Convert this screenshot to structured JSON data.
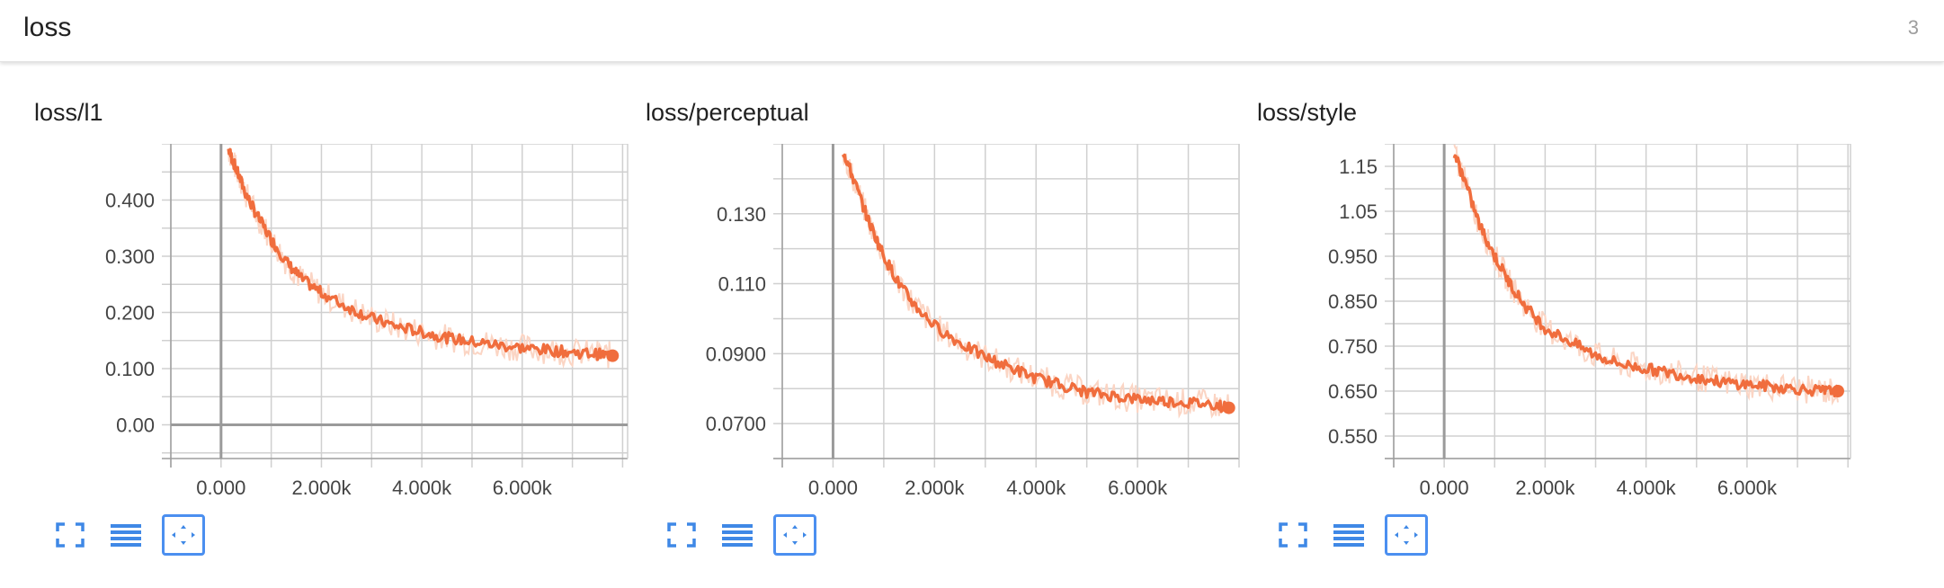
{
  "header": {
    "title": "loss",
    "count": "3"
  },
  "colors": {
    "line": "#f06d3d",
    "raw": "#fbd5c4",
    "grid": "#d0d0d0",
    "axis": "#9e9e9e",
    "icon": "#3f88e6"
  },
  "toolbar_icons": [
    "fullscreen-icon",
    "data-table-icon",
    "fit-domain-icon"
  ],
  "chart_data": [
    {
      "type": "line",
      "title": "loss/l1",
      "x_tick_labels": [
        "0.000",
        "2.000k",
        "4.000k",
        "6.000k"
      ],
      "x_ticks": [
        0,
        2000,
        4000,
        6000
      ],
      "y_tick_labels": [
        "0.00",
        "0.100",
        "0.200",
        "0.300",
        "0.400"
      ],
      "y_ticks": [
        0,
        0.1,
        0.2,
        0.3,
        0.4
      ],
      "xlim": [
        -1000,
        8100
      ],
      "ylim": [
        -0.06,
        0.5
      ],
      "x_zero_axis": true,
      "y_zero_axis": true,
      "series": [
        {
          "x": [
            150,
            300,
            500,
            700,
            1000,
            1300,
            1600,
            2000,
            2500,
            3000,
            3500,
            4000,
            4500,
            5000,
            5500,
            6000,
            6500,
            7000,
            7500,
            7800
          ],
          "y": [
            0.49,
            0.455,
            0.41,
            0.375,
            0.33,
            0.29,
            0.26,
            0.235,
            0.21,
            0.19,
            0.175,
            0.165,
            0.155,
            0.148,
            0.142,
            0.137,
            0.133,
            0.129,
            0.126,
            0.123
          ]
        }
      ]
    },
    {
      "type": "line",
      "title": "loss/perceptual",
      "x_tick_labels": [
        "0.000",
        "2.000k",
        "4.000k",
        "6.000k"
      ],
      "x_ticks": [
        0,
        2000,
        4000,
        6000
      ],
      "y_tick_labels": [
        "0.0700",
        "0.0900",
        "0.110",
        "0.130"
      ],
      "y_ticks": [
        0.07,
        0.09,
        0.11,
        0.13
      ],
      "xlim": [
        -1000,
        8000
      ],
      "ylim": [
        0.06,
        0.15
      ],
      "x_zero_axis": true,
      "y_zero_axis": false,
      "series": [
        {
          "x": [
            200,
            400,
            700,
            1000,
            1300,
            1600,
            2000,
            2500,
            3000,
            3500,
            4000,
            4500,
            5000,
            5500,
            6000,
            6500,
            7000,
            7500,
            7800
          ],
          "y": [
            0.148,
            0.14,
            0.128,
            0.118,
            0.11,
            0.104,
            0.098,
            0.093,
            0.089,
            0.086,
            0.083,
            0.081,
            0.079,
            0.078,
            0.077,
            0.0765,
            0.076,
            0.0755,
            0.0745
          ]
        }
      ]
    },
    {
      "type": "line",
      "title": "loss/style",
      "x_tick_labels": [
        "0.000",
        "2.000k",
        "4.000k",
        "6.000k"
      ],
      "x_ticks": [
        0,
        2000,
        4000,
        6000
      ],
      "y_tick_labels": [
        "0.550",
        "0.650",
        "0.750",
        "0.850",
        "0.950",
        "1.05",
        "1.15"
      ],
      "y_ticks": [
        0.55,
        0.65,
        0.75,
        0.85,
        0.95,
        1.05,
        1.15
      ],
      "xlim": [
        -1000,
        8050
      ],
      "ylim": [
        0.5,
        1.2
      ],
      "x_zero_axis": true,
      "y_zero_axis": false,
      "series": [
        {
          "x": [
            200,
            400,
            700,
            1000,
            1300,
            1600,
            2000,
            2500,
            3000,
            3500,
            4000,
            4500,
            5000,
            5500,
            6000,
            6500,
            7000,
            7500,
            7800
          ],
          "y": [
            1.18,
            1.12,
            1.02,
            0.95,
            0.89,
            0.84,
            0.79,
            0.76,
            0.73,
            0.71,
            0.7,
            0.69,
            0.68,
            0.67,
            0.665,
            0.66,
            0.655,
            0.65,
            0.65
          ]
        }
      ]
    }
  ]
}
